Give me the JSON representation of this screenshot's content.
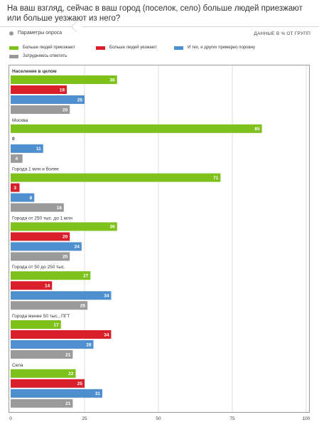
{
  "title": "На ваш взгляд, сейчас в ваш город (поселок, село) больше людей приезжают или больше уезжают из него?",
  "params_label": "Параметры опроса",
  "unit_label": "ДАННЫЕ В % ОТ ГРУПП",
  "colors": {
    "green": "#7dc11a",
    "red": "#d9202a",
    "blue": "#4d8fcf",
    "gray": "#9a9a9a"
  },
  "chart_data": {
    "type": "bar",
    "orientation": "horizontal",
    "xlim": [
      0,
      100
    ],
    "xticks": [
      0,
      25,
      50,
      75,
      100
    ],
    "grid": true,
    "legend_position": "top",
    "series": [
      {
        "name": "Больше людей приезжают",
        "color": "green",
        "values": [
          36,
          85,
          71,
          36,
          27,
          17,
          22
        ]
      },
      {
        "name": "Больше людей уезжают",
        "color": "red",
        "values": [
          19,
          0,
          3,
          20,
          14,
          34,
          25
        ]
      },
      {
        "name": "И тех, и других примерно поровну",
        "color": "blue",
        "values": [
          25,
          11,
          8,
          24,
          34,
          28,
          31
        ]
      },
      {
        "name": "Затрудняюсь ответить",
        "color": "gray",
        "values": [
          20,
          4,
          18,
          20,
          26,
          21,
          21
        ]
      }
    ],
    "categories": [
      "Население в целом",
      "Москва",
      "Города 1 млн и более",
      "Города от 250 тыс. до 1 млн",
      "Города от 50 до 250 тыс.",
      "Города менее 50 тыс., ПГТ",
      "Села"
    ]
  }
}
